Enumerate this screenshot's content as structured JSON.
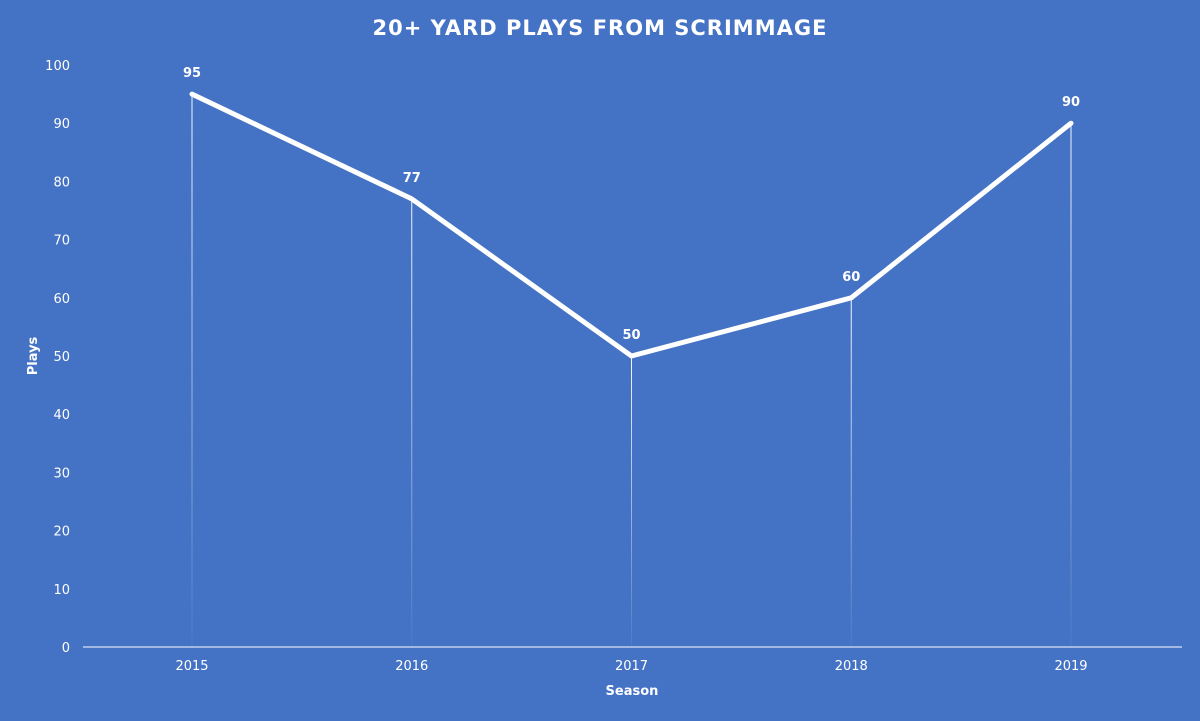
{
  "colors": {
    "background": "#4472C4",
    "line": "#FFFFFF",
    "text": "#FFFFFF"
  },
  "chart_data": {
    "type": "line",
    "title": "20+ YARD PLAYS FROM SCRIMMAGE",
    "xlabel": "Season",
    "ylabel": "Plays",
    "categories": [
      "2015",
      "2016",
      "2017",
      "2018",
      "2019"
    ],
    "series": [
      {
        "values": [
          95,
          77,
          50,
          60,
          90
        ]
      }
    ],
    "data_labels": [
      "95",
      "77",
      "50",
      "60",
      "90"
    ],
    "ylim": [
      0,
      100
    ],
    "yticks": [
      "0",
      "10",
      "20",
      "30",
      "40",
      "50",
      "60",
      "70",
      "80",
      "90",
      "100"
    ],
    "grid": false,
    "drop_lines": true,
    "legend": "none"
  }
}
